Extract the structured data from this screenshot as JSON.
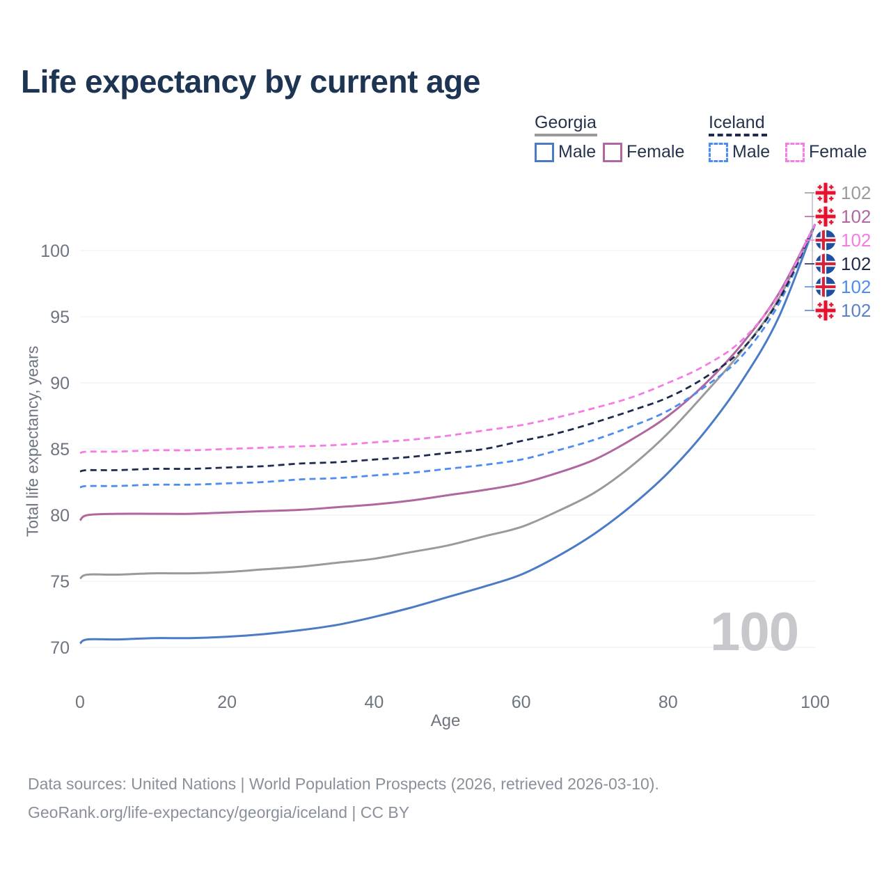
{
  "title": "Life expectancy by current age",
  "legend": {
    "groups": [
      {
        "label": "Georgia",
        "line_style": "solid",
        "underline_color": "#9a9a9a",
        "items": [
          {
            "label": "Male",
            "color": "#4b7bc5",
            "dashed": false
          },
          {
            "label": "Female",
            "color": "#b0679f",
            "dashed": false
          }
        ]
      },
      {
        "label": "Iceland",
        "line_style": "dashed",
        "underline_color": "#1e2b4d",
        "items": [
          {
            "label": "Male",
            "color": "#4d8df0",
            "dashed": true
          },
          {
            "label": "Female",
            "color": "#f47ce4",
            "dashed": true
          }
        ]
      }
    ]
  },
  "chart_data": {
    "type": "line",
    "title": "Life expectancy by current age",
    "xlabel": "Age",
    "ylabel": "Total life expectancy, years",
    "x_ticks": [
      0,
      20,
      40,
      60,
      80,
      100
    ],
    "y_ticks": [
      70,
      75,
      80,
      85,
      90,
      95,
      100
    ],
    "xlim": [
      0,
      100
    ],
    "ylim": [
      70,
      102
    ],
    "grid": "horizontal",
    "x": [
      0,
      1,
      5,
      10,
      15,
      20,
      25,
      30,
      35,
      40,
      45,
      50,
      55,
      60,
      65,
      70,
      75,
      80,
      85,
      90,
      95,
      100
    ],
    "series": [
      {
        "name": "Georgia Male",
        "country": "Georgia",
        "sex": "Male",
        "color": "#4b7bc5",
        "dash": false,
        "values": [
          70.3,
          70.6,
          70.6,
          70.7,
          70.7,
          70.8,
          71.0,
          71.3,
          71.7,
          72.3,
          73.0,
          73.8,
          74.6,
          75.5,
          76.9,
          78.6,
          80.7,
          83.2,
          86.3,
          90.1,
          94.9,
          102
        ]
      },
      {
        "name": "Georgia",
        "country": "Georgia",
        "sex": "All",
        "color": "#9a9a9a",
        "dash": false,
        "values": [
          75.2,
          75.5,
          75.5,
          75.6,
          75.6,
          75.7,
          75.9,
          76.1,
          76.4,
          76.7,
          77.2,
          77.7,
          78.4,
          79.1,
          80.3,
          81.7,
          83.7,
          86.2,
          89.2,
          92.4,
          96.3,
          102
        ]
      },
      {
        "name": "Georgia Female",
        "country": "Georgia",
        "sex": "Female",
        "color": "#b0679f",
        "dash": false,
        "values": [
          79.6,
          80.0,
          80.1,
          80.1,
          80.1,
          80.2,
          80.3,
          80.4,
          80.6,
          80.8,
          81.1,
          81.5,
          81.9,
          82.4,
          83.2,
          84.2,
          85.7,
          87.5,
          89.9,
          92.9,
          96.7,
          102
        ]
      },
      {
        "name": "Iceland Male",
        "country": "Iceland",
        "sex": "Male",
        "color": "#4d8df0",
        "dash": true,
        "values": [
          82.1,
          82.2,
          82.2,
          82.3,
          82.3,
          82.4,
          82.5,
          82.7,
          82.8,
          83.0,
          83.2,
          83.5,
          83.8,
          84.2,
          84.9,
          85.7,
          86.7,
          87.9,
          89.7,
          92.0,
          95.9,
          102
        ]
      },
      {
        "name": "Iceland",
        "country": "Iceland",
        "sex": "All",
        "color": "#1e2b4d",
        "dash": true,
        "values": [
          83.3,
          83.4,
          83.4,
          83.5,
          83.5,
          83.6,
          83.7,
          83.9,
          84.0,
          84.2,
          84.4,
          84.7,
          85.0,
          85.6,
          86.2,
          87.0,
          87.9,
          88.9,
          90.4,
          92.5,
          96.2,
          102
        ]
      },
      {
        "name": "Iceland Female",
        "country": "Iceland",
        "sex": "Female",
        "color": "#f47ce4",
        "dash": true,
        "values": [
          84.7,
          84.8,
          84.8,
          84.9,
          84.9,
          85.0,
          85.1,
          85.2,
          85.3,
          85.5,
          85.7,
          86.0,
          86.4,
          86.8,
          87.4,
          88.1,
          88.9,
          90.0,
          91.3,
          93.2,
          96.6,
          102
        ]
      }
    ],
    "end_labels": [
      {
        "text": "102",
        "flag": "georgia",
        "series": "Georgia",
        "color": "#9a9a9a"
      },
      {
        "text": "102",
        "flag": "georgia",
        "series": "Georgia Female",
        "color": "#b0679f"
      },
      {
        "text": "102",
        "flag": "iceland",
        "series": "Iceland Female",
        "color": "#f47ce4"
      },
      {
        "text": "102",
        "flag": "iceland",
        "series": "Iceland",
        "color": "#1e2b4d"
      },
      {
        "text": "102",
        "flag": "iceland",
        "series": "Iceland Male",
        "color": "#4d8df0"
      },
      {
        "text": "102",
        "flag": "georgia",
        "series": "Georgia Male",
        "color": "#5b82c6"
      }
    ],
    "watermark": "100"
  },
  "footer": {
    "line1": "Data sources: United Nations | World Population Prospects (2026, retrieved 2026-03-10).",
    "line2": "GeoRank.org/life-expectancy/georgia/iceland | CC BY"
  }
}
